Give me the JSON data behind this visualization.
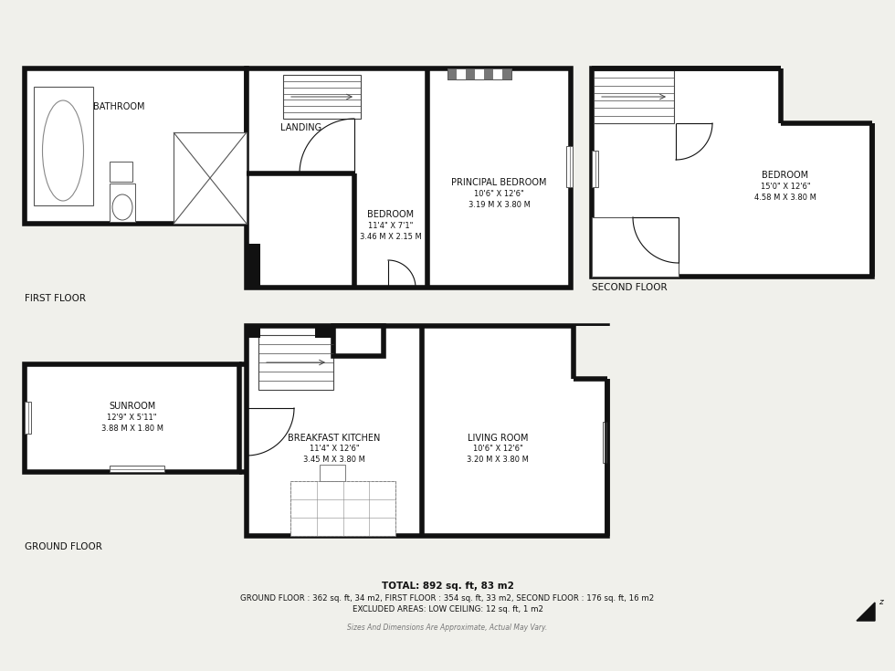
{
  "bg_color": "#f0f0eb",
  "wall_color": "#111111",
  "wall_lw": 4.0,
  "thin_lw": 0.8,
  "text_color": "#111111",
  "title_text": "TOTAL: 892 sq. ft, 83 m2",
  "line2": "GROUND FLOOR : 362 sq. ft, 34 m2, FIRST FLOOR : 354 sq. ft, 33 m2, SECOND FLOOR : 176 sq. ft, 16 m2",
  "line3": "EXCLUDED AREAS: LOW CEILING: 12 sq. ft, 1 m2",
  "line4": "Sizes And Dimensions Are Approximate, Actual May Vary.",
  "floor_labels": {
    "first": "FIRST FLOOR",
    "ground": "GROUND FLOOR",
    "second": "SECOND FLOOR"
  },
  "rooms": {
    "bathroom": "BATHROOM",
    "landing": "LANDING",
    "bedroom_first": "BEDROOM",
    "bedroom_first_dim1": "11'4\" X 7'1\"",
    "bedroom_first_dim2": "3.46 M X 2.15 M",
    "principal_bedroom": "PRINCIPAL BEDROOM",
    "principal_bedroom_dim1": "10'6\" X 12'6\"",
    "principal_bedroom_dim2": "3.19 M X 3.80 M",
    "bedroom_second": "BEDROOM",
    "bedroom_second_dim1": "15'0\" X 12'6\"",
    "bedroom_second_dim2": "4.58 M X 3.80 M",
    "sunroom": "SUNROOM",
    "sunroom_dim1": "12'9\" X 5'11\"",
    "sunroom_dim2": "3.88 M X 1.80 M",
    "breakfast_kitchen": "BREAKFAST KITCHEN",
    "breakfast_kitchen_dim1": "11'4\" X 12'6\"",
    "breakfast_kitchen_dim2": "3.45 M X 3.80 M",
    "living_room": "LIVING ROOM",
    "living_room_dim1": "10'6\" X 12'6\"",
    "living_room_dim2": "3.20 M X 3.80 M"
  }
}
